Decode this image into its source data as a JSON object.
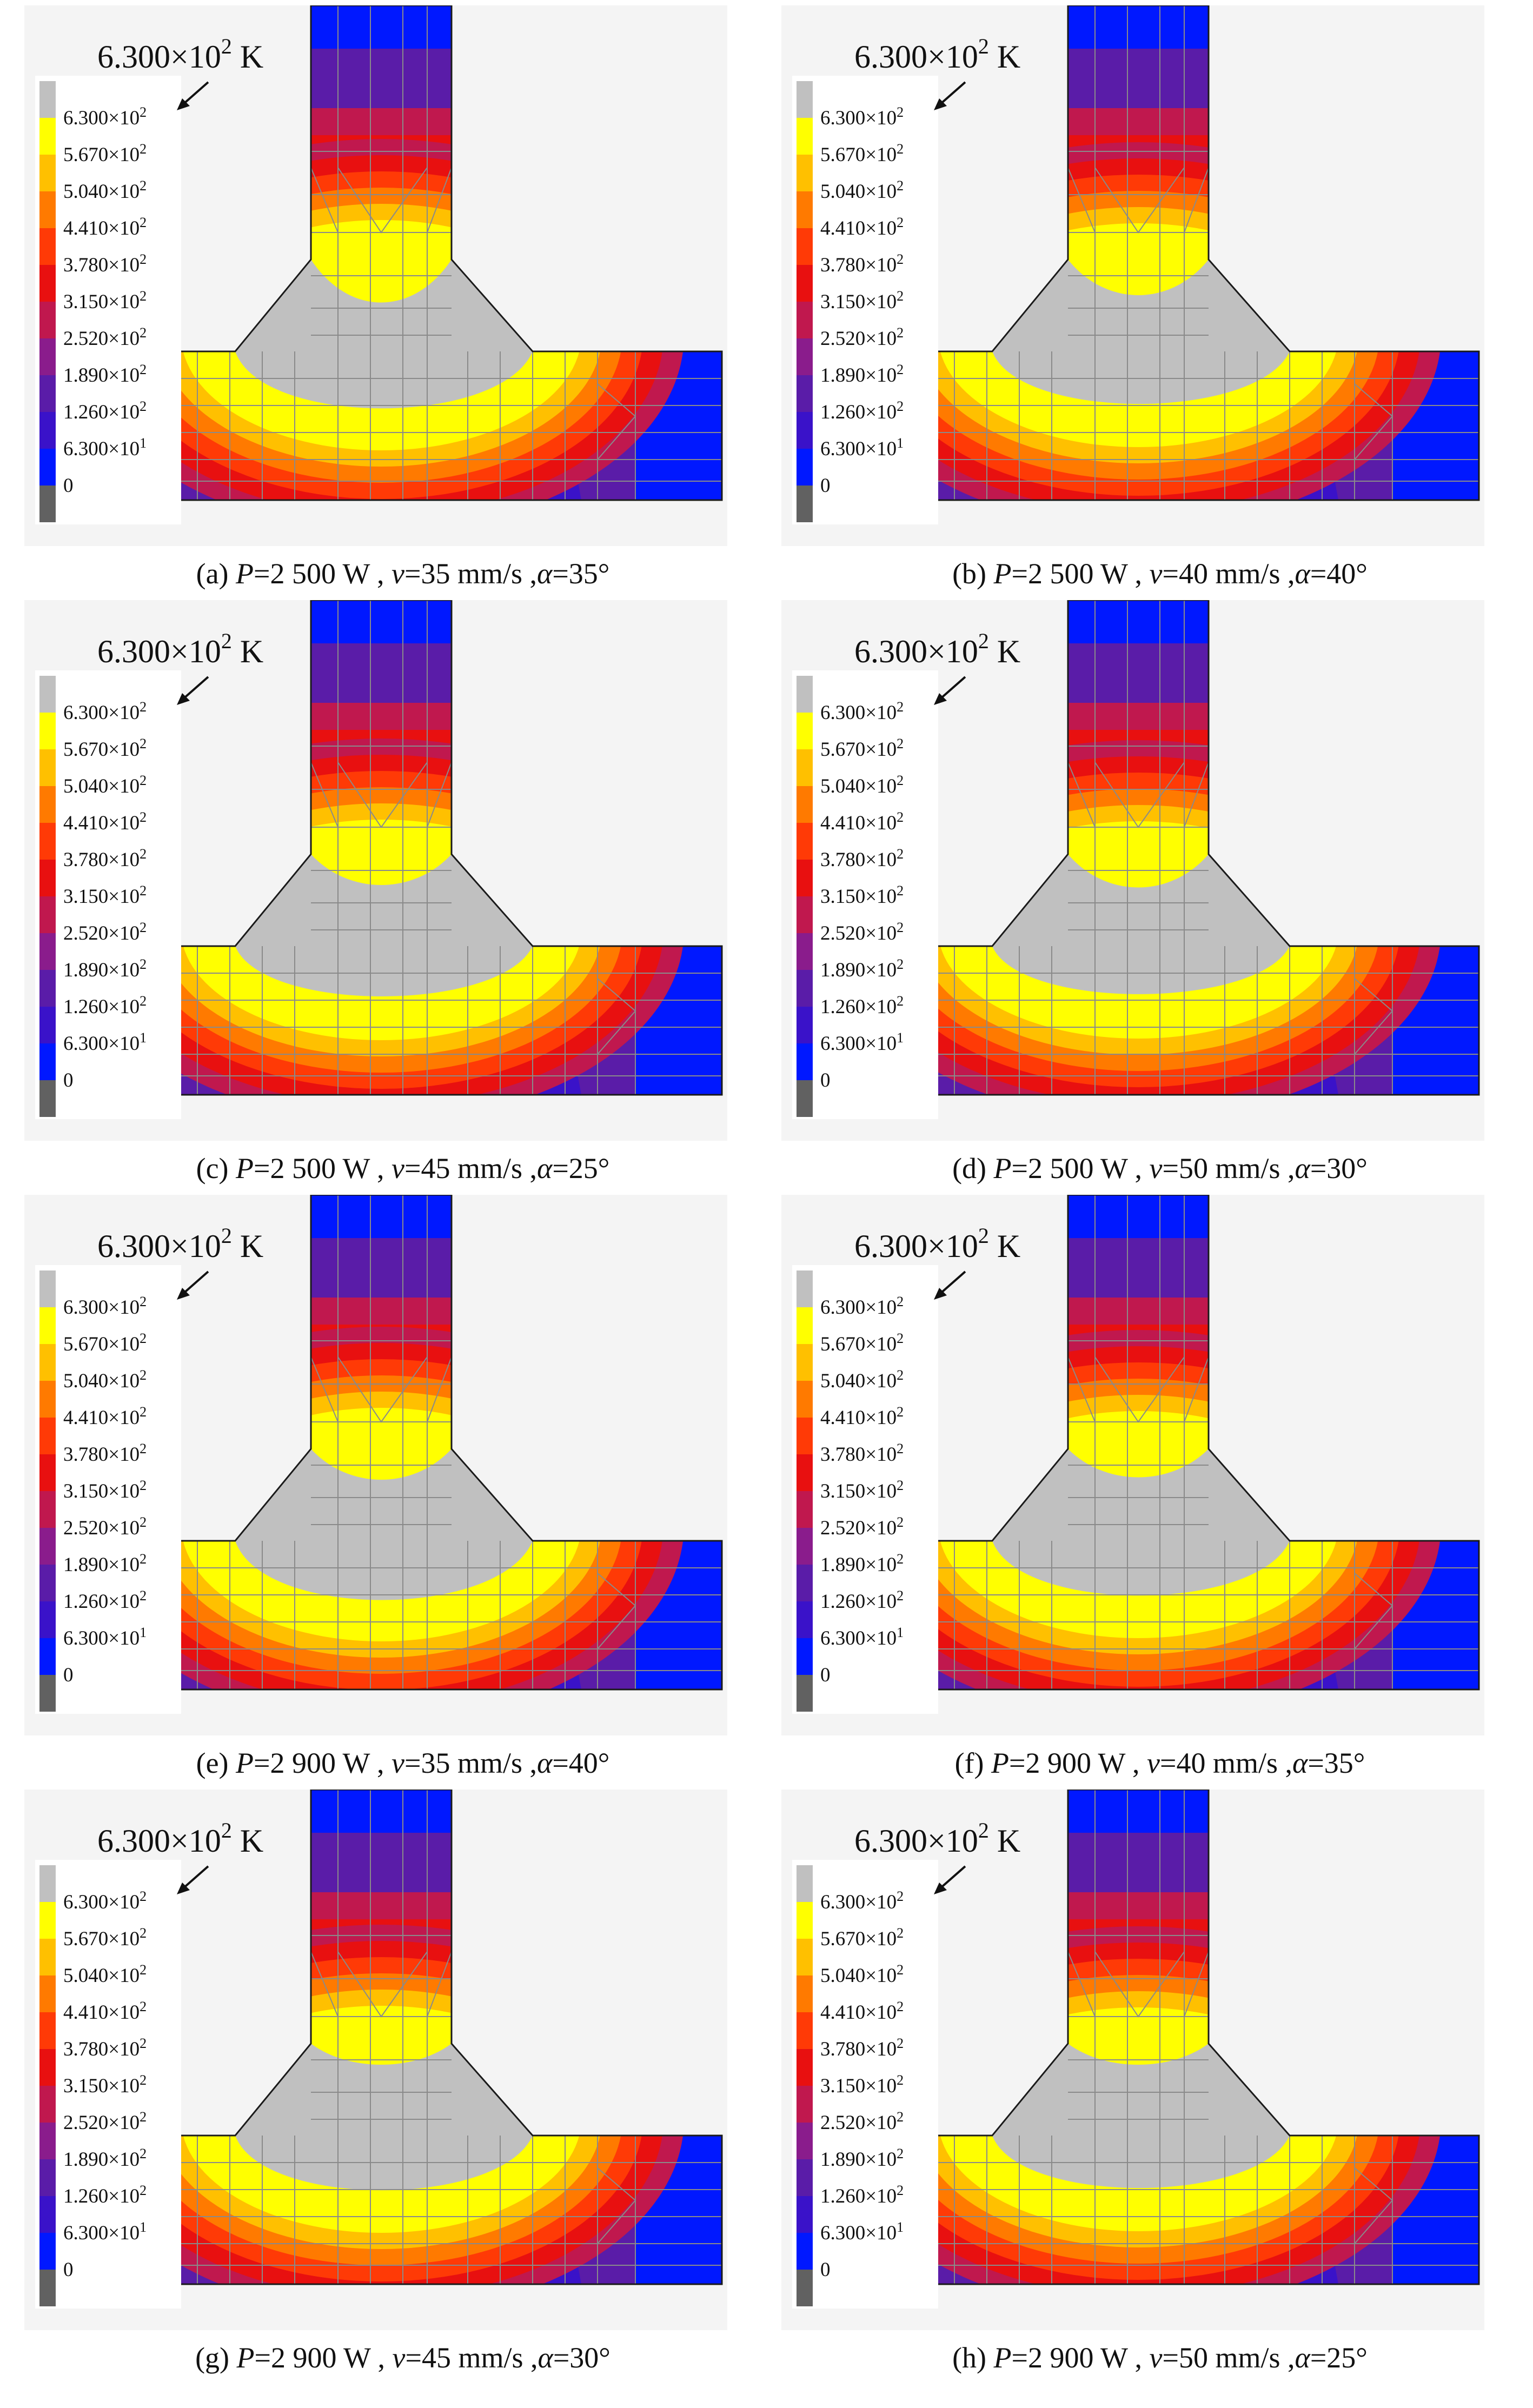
{
  "colors": {
    "background": "#f4f4f4",
    "melt": "#c0c0c0",
    "mesh": "#8a8a8a",
    "outline": "#1a1a1a",
    "scale": [
      "#616161",
      "#0018ff",
      "#3a12c9",
      "#5a1ca8",
      "#8a1c8c",
      "#c0184e",
      "#e81010",
      "#ff3a06",
      "#ff7a00",
      "#ffc000",
      "#ffff00",
      "#c0c0c0"
    ]
  },
  "legend": {
    "marker_value": "6.300×10",
    "marker_exp": "2",
    "marker_unit": "K",
    "ticks": [
      {
        "m": "6.300×10",
        "e": "2"
      },
      {
        "m": "5.670×10",
        "e": "2"
      },
      {
        "m": "5.040×10",
        "e": "2"
      },
      {
        "m": "4.410×10",
        "e": "2"
      },
      {
        "m": "3.780×10",
        "e": "2"
      },
      {
        "m": "3.150×10",
        "e": "2"
      },
      {
        "m": "2.520×10",
        "e": "2"
      },
      {
        "m": "1.890×10",
        "e": "2"
      },
      {
        "m": "1.260×10",
        "e": "2"
      },
      {
        "m": "6.300×10",
        "e": "1"
      },
      {
        "m": "0",
        "e": ""
      }
    ]
  },
  "panels": [
    {
      "tag": "(a)",
      "P": "2 500 W",
      "v": "35 mm/s",
      "alpha": "35°",
      "melt_depth": 0.55,
      "cap_depth": 0.55
    },
    {
      "tag": "(b)",
      "P": "2 500 W",
      "v": "40 mm/s",
      "alpha": "40°",
      "melt_depth": 0.45,
      "cap_depth": 0.4
    },
    {
      "tag": "(c)",
      "P": "2 500 W",
      "v": "45 mm/s",
      "alpha": "25°",
      "melt_depth": 0.4,
      "cap_depth": 0.3
    },
    {
      "tag": "(d)",
      "P": "2 500 W",
      "v": "50 mm/s",
      "alpha": "30°",
      "melt_depth": 0.35,
      "cap_depth": 0.35
    },
    {
      "tag": "(e)",
      "P": "2 900 W",
      "v": "35 mm/s",
      "alpha": "40°",
      "melt_depth": 0.6,
      "cap_depth": 0.3
    },
    {
      "tag": "(f)",
      "P": "2 900 W",
      "v": "40 mm/s",
      "alpha": "35°",
      "melt_depth": 0.5,
      "cap_depth": 0.25
    },
    {
      "tag": "(g)",
      "P": "2 900 W",
      "v": "45 mm/s",
      "alpha": "30°",
      "melt_depth": 0.5,
      "cap_depth": 0.1
    },
    {
      "tag": "(h)",
      "P": "2 900 W",
      "v": "50 mm/s",
      "alpha": "25°",
      "melt_depth": 0.45,
      "cap_depth": 0.1
    }
  ],
  "labels": {
    "p": "P",
    "v": "v",
    "alpha": "α",
    "eq": "=",
    "sep": " , "
  }
}
